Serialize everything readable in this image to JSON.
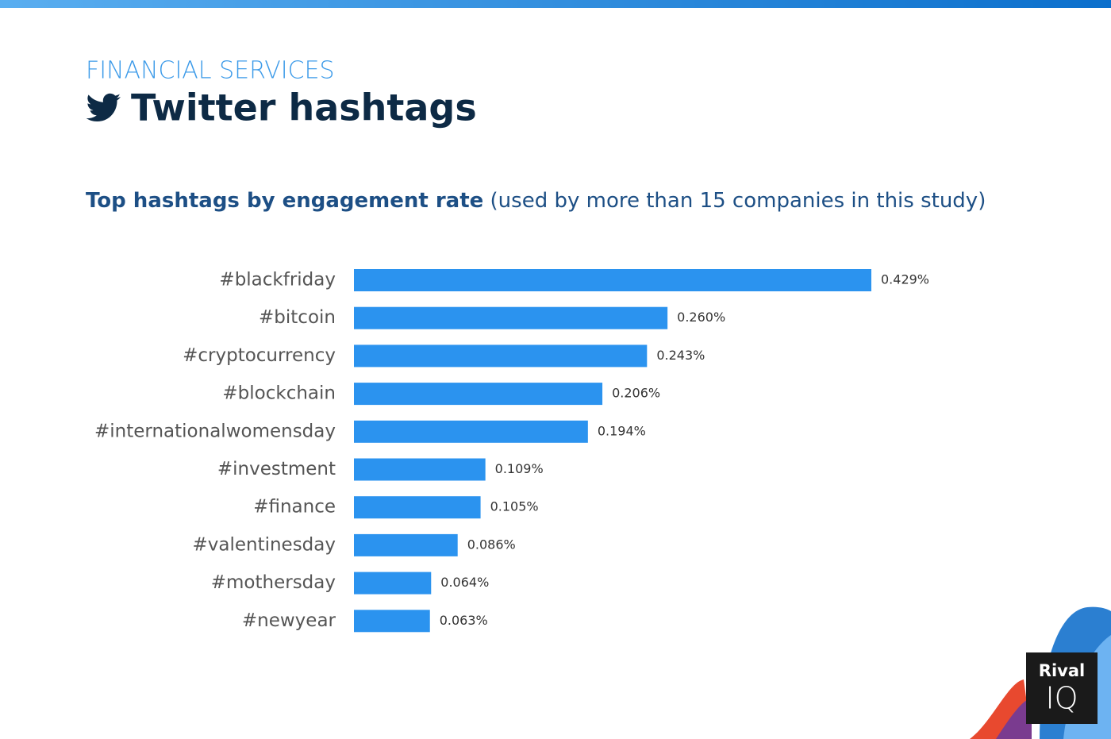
{
  "header": {
    "section": "FINANCIAL SERVICES",
    "title": "Twitter hashtags"
  },
  "chart_data": {
    "type": "bar",
    "orientation": "horizontal",
    "title": "Top hashtags by engagement rate",
    "subtitle": "(used by more than 15 companies in this study)",
    "categories": [
      "#blackfriday",
      "#bitcoin",
      "#cryptocurrency",
      "#blockchain",
      "#internationalwomensday",
      "#investment",
      "#finance",
      "#valentinesday",
      "#mothersday",
      "#newyear"
    ],
    "values": [
      0.429,
      0.26,
      0.243,
      0.206,
      0.194,
      0.109,
      0.105,
      0.086,
      0.064,
      0.063
    ],
    "value_labels": [
      "0.429%",
      "0.260%",
      "0.243%",
      "0.206%",
      "0.194%",
      "0.109%",
      "0.105%",
      "0.086%",
      "0.064%",
      "0.063%"
    ],
    "color": "#2b93ef"
  },
  "logo": {
    "top": "Rival",
    "bottom": "IQ"
  }
}
